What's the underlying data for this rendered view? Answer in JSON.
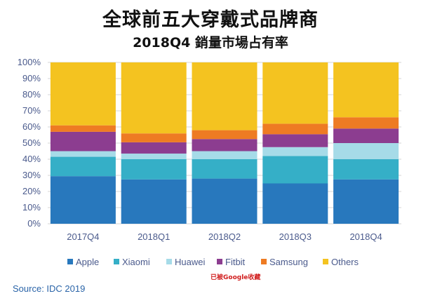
{
  "title": "全球前五大穿戴式品牌商",
  "subtitle": "2018Q4 銷量市場占有率",
  "source": "Source: IDC 2019",
  "watermark": "已被Google收藏",
  "chart_data": {
    "type": "bar",
    "stacked": true,
    "categories": [
      "2017Q4",
      "2018Q1",
      "2018Q2",
      "2018Q3",
      "2018Q4"
    ],
    "series": [
      {
        "name": "Apple",
        "color": "#2878bd",
        "values": [
          29.5,
          27.5,
          28,
          25,
          27.5
        ]
      },
      {
        "name": "Xiaomi",
        "color": "#35afc7",
        "values": [
          12,
          12.5,
          12,
          17,
          12.5
        ]
      },
      {
        "name": "Huawei",
        "color": "#a6dbe8",
        "values": [
          3.5,
          3.5,
          5,
          5.5,
          10
        ]
      },
      {
        "name": "Fitbit",
        "color": "#8c3d90",
        "values": [
          12,
          7,
          7.5,
          8,
          9
        ]
      },
      {
        "name": "Samsung",
        "color": "#ee7b23",
        "values": [
          4,
          5.5,
          5.5,
          6.5,
          7
        ]
      },
      {
        "name": "Others",
        "color": "#f4c320",
        "values": [
          39,
          44,
          42,
          38,
          34
        ]
      }
    ],
    "y_ticks": [
      "0%",
      "10%",
      "20%",
      "30%",
      "40%",
      "50%",
      "60%",
      "70%",
      "80%",
      "90%",
      "100%"
    ],
    "ylim": [
      0,
      100
    ],
    "xlabel": "",
    "ylabel": "",
    "grid": true,
    "legend": "bottom",
    "axis_color": "#4a5a8c",
    "grid_color": "#d6d6d6"
  }
}
